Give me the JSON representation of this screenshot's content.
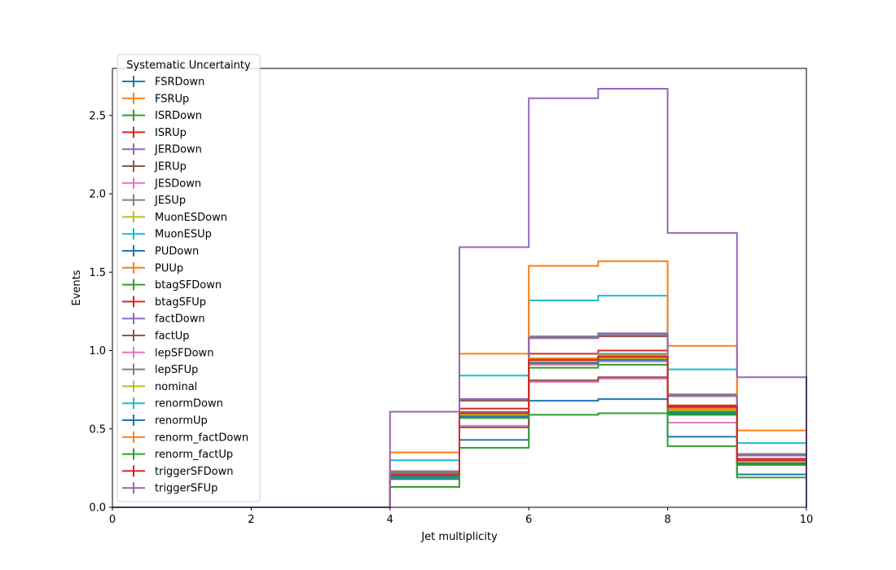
{
  "chart_data": {
    "type": "line",
    "drawstyle": "step",
    "xlabel": "Jet multiplicity",
    "ylabel": "Events",
    "xlim": [
      0,
      10
    ],
    "ylim": [
      0,
      2.8
    ],
    "x_ticks": [
      "0",
      "2",
      "4",
      "6",
      "8",
      "10"
    ],
    "y_ticks": [
      "0.0",
      "0.5",
      "1.0",
      "1.5",
      "2.0",
      "2.5"
    ],
    "grid": false,
    "bin_edges": [
      0,
      1,
      2,
      3,
      4,
      5,
      6,
      7,
      8,
      9,
      10
    ],
    "legend": {
      "title": "Systematic Uncertainty",
      "placement": "upper-left"
    },
    "series": [
      {
        "name": "FSRDown",
        "color": "#1f77b4",
        "values": [
          0,
          0,
          0,
          0,
          0.21,
          0.59,
          0.93,
          0.95,
          0.61,
          0.29
        ]
      },
      {
        "name": "FSRUp",
        "color": "#ff7f0e",
        "values": [
          0,
          0,
          0,
          0,
          0.22,
          0.6,
          0.93,
          0.96,
          0.62,
          0.3
        ]
      },
      {
        "name": "ISRDown",
        "color": "#2ca02c",
        "values": [
          0,
          0,
          0,
          0,
          0.2,
          0.58,
          0.92,
          0.95,
          0.61,
          0.29
        ]
      },
      {
        "name": "ISRUp",
        "color": "#d62728",
        "values": [
          0,
          0,
          0,
          0,
          0.22,
          0.6,
          0.94,
          0.97,
          0.64,
          0.3
        ]
      },
      {
        "name": "JERDown",
        "color": "#9467bd",
        "values": [
          0,
          0,
          0,
          0,
          0.23,
          0.69,
          1.08,
          1.11,
          0.72,
          0.34
        ]
      },
      {
        "name": "JERUp",
        "color": "#8c564b",
        "values": [
          0,
          0,
          0,
          0,
          0.22,
          0.68,
          1.08,
          1.09,
          0.71,
          0.33
        ]
      },
      {
        "name": "JESDown",
        "color": "#e377c2",
        "values": [
          0,
          0,
          0,
          0,
          0.21,
          0.52,
          0.8,
          0.82,
          0.54,
          0.27
        ]
      },
      {
        "name": "JESUp",
        "color": "#7f7f7f",
        "values": [
          0,
          0,
          0,
          0,
          0.23,
          0.69,
          1.09,
          1.1,
          0.72,
          0.34
        ]
      },
      {
        "name": "MuonESDown",
        "color": "#bcbd22",
        "values": [
          0,
          0,
          0,
          0,
          0.21,
          0.59,
          0.91,
          0.94,
          0.6,
          0.29
        ]
      },
      {
        "name": "MuonESUp",
        "color": "#17becf",
        "values": [
          0,
          0,
          0,
          0,
          0.3,
          0.84,
          1.32,
          1.35,
          0.88,
          0.41
        ]
      },
      {
        "name": "PUDown",
        "color": "#1f77b4",
        "values": [
          0,
          0,
          0,
          0,
          0.18,
          0.43,
          0.68,
          0.69,
          0.45,
          0.21
        ]
      },
      {
        "name": "PUUp",
        "color": "#ff7f0e",
        "values": [
          0,
          0,
          0,
          0,
          0.35,
          0.98,
          1.54,
          1.57,
          1.03,
          0.49
        ]
      },
      {
        "name": "btagSFDown",
        "color": "#2ca02c",
        "values": [
          0,
          0,
          0,
          0,
          0.13,
          0.38,
          0.59,
          0.6,
          0.39,
          0.19
        ]
      },
      {
        "name": "btagSFUp",
        "color": "#d62728",
        "values": [
          0,
          0,
          0,
          0,
          0.22,
          0.63,
          0.98,
          1.0,
          0.65,
          0.31
        ]
      },
      {
        "name": "factDown",
        "color": "#9467bd",
        "values": [
          0,
          0,
          0,
          0,
          0.22,
          0.69,
          1.08,
          1.11,
          0.71,
          0.33
        ]
      },
      {
        "name": "factUp",
        "color": "#8c564b",
        "values": [
          0,
          0,
          0,
          0,
          0.21,
          0.51,
          0.81,
          0.83,
          0.62,
          0.28
        ]
      },
      {
        "name": "lepSFDown",
        "color": "#e377c2",
        "values": [
          0,
          0,
          0,
          0,
          0.2,
          0.57,
          0.91,
          0.93,
          0.59,
          0.28
        ]
      },
      {
        "name": "lepSFUp",
        "color": "#7f7f7f",
        "values": [
          0,
          0,
          0,
          0,
          0.22,
          0.61,
          0.95,
          0.97,
          0.63,
          0.3
        ]
      },
      {
        "name": "nominal",
        "color": "#bcbd22",
        "values": [
          0,
          0,
          0,
          0,
          0.21,
          0.59,
          0.93,
          0.95,
          0.62,
          0.3
        ]
      },
      {
        "name": "renormDown",
        "color": "#17becf",
        "values": [
          0,
          0,
          0,
          0,
          0.21,
          0.6,
          0.95,
          0.98,
          0.63,
          0.3
        ]
      },
      {
        "name": "renormUp",
        "color": "#1f77b4",
        "values": [
          0,
          0,
          0,
          0,
          0.2,
          0.58,
          0.92,
          0.94,
          0.6,
          0.28
        ]
      },
      {
        "name": "renorm_factDown",
        "color": "#ff7f0e",
        "values": [
          0,
          0,
          0,
          0,
          0.21,
          0.6,
          0.95,
          0.97,
          0.63,
          0.3
        ]
      },
      {
        "name": "renorm_factUp",
        "color": "#2ca02c",
        "values": [
          0,
          0,
          0,
          0,
          0.19,
          0.57,
          0.89,
          0.91,
          0.59,
          0.27
        ]
      },
      {
        "name": "triggerSFDown",
        "color": "#d62728",
        "values": [
          0,
          0,
          0,
          0,
          0.21,
          0.6,
          0.94,
          0.96,
          0.64,
          0.3
        ]
      },
      {
        "name": "triggerSFUp",
        "color": "#9467bd",
        "values": [
          0,
          0,
          0,
          0,
          0.61,
          1.66,
          2.61,
          2.67,
          1.75,
          0.83
        ]
      }
    ]
  }
}
